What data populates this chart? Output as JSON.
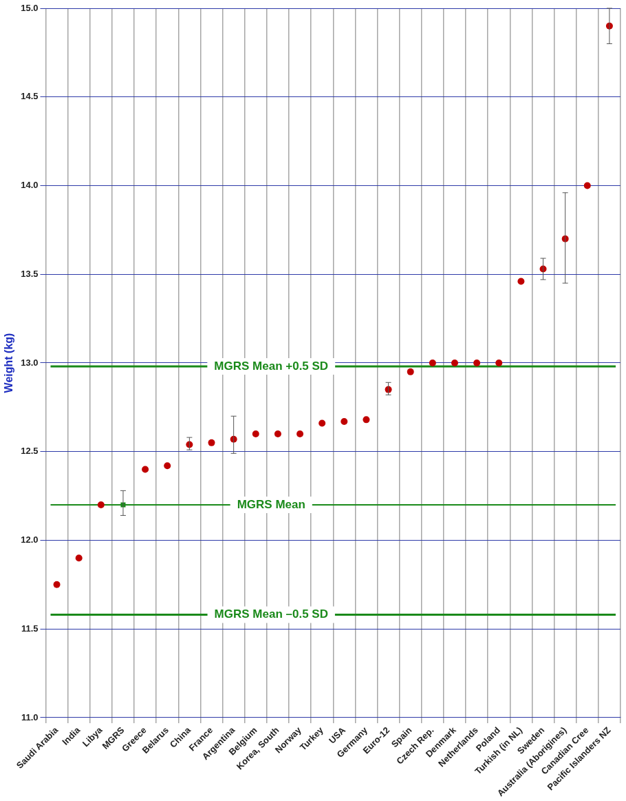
{
  "chart_data": {
    "type": "scatter",
    "ylabel": "Weight (kg)",
    "categories": [
      "Saudi Arabia",
      "India",
      "Libya",
      "MGRS",
      "Greece",
      "Belarus",
      "China",
      "France",
      "Argentina",
      "Belgium",
      "Korea, South",
      "Norway",
      "Turkey",
      "USA",
      "Germany",
      "Euro-12",
      "Spain",
      "Czech Rep.",
      "Denmark",
      "Netherlands",
      "Poland",
      "Turkish (in NL)",
      "Sweden",
      "Australia (Aborigines)",
      "Canadian Cree",
      "Pacific Islanders NZ"
    ],
    "series": [
      {
        "color": "#c00000",
        "marker": "circle",
        "values": [
          11.75,
          11.9,
          12.2,
          null,
          12.4,
          12.42,
          12.54,
          12.55,
          12.57,
          12.6,
          12.6,
          12.6,
          12.66,
          12.67,
          12.68,
          12.85,
          12.95,
          13.0,
          13.0,
          13.0,
          13.0,
          13.46,
          13.53,
          13.7,
          14.0,
          14.9
        ],
        "errors": [
          null,
          null,
          null,
          null,
          null,
          null,
          [
            12.51,
            12.58
          ],
          null,
          [
            12.49,
            12.7
          ],
          null,
          null,
          null,
          null,
          null,
          null,
          [
            12.82,
            12.89
          ],
          null,
          null,
          null,
          null,
          null,
          null,
          [
            13.47,
            13.59
          ],
          [
            13.45,
            13.96
          ],
          null,
          [
            14.8,
            15.0
          ]
        ]
      },
      {
        "color": "#1a8a1a",
        "marker": "square",
        "x": [
          "MGRS"
        ],
        "values": [
          12.2
        ],
        "errors": [
          [
            12.14,
            12.28
          ]
        ]
      }
    ],
    "ylim": [
      11.0,
      15.0
    ],
    "yticks": [
      {
        "value": 11,
        "label": "11.0"
      },
      11.5,
      {
        "value": 12,
        "label": "12.0"
      },
      12.5,
      {
        "value": 13,
        "label": "13.0"
      },
      13.5,
      {
        "value": 14,
        "label": "14.0"
      },
      14.5,
      {
        "value": 15,
        "label": "15.0"
      }
    ],
    "grid": true,
    "legend": false,
    "ref_lines": [
      {
        "axis": "y",
        "value": 12.98,
        "label": "MGRS Mean +0.5 SD",
        "color": "#1a8a1a"
      },
      {
        "axis": "y",
        "value": 12.2,
        "label": "MGRS Mean",
        "color": "#1a8a1a"
      },
      {
        "axis": "y",
        "value": 11.58,
        "label": "MGRS Mean –0.5 SD",
        "color": "#1a8a1a"
      }
    ]
  }
}
